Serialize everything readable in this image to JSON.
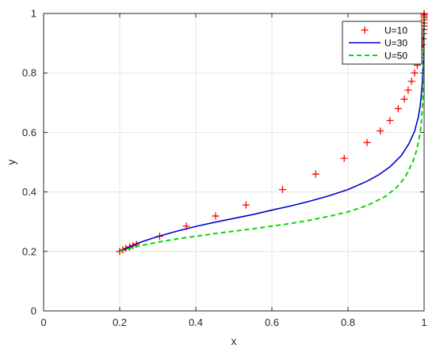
{
  "chart_data": {
    "type": "line",
    "title": "",
    "xlabel": "x",
    "ylabel": "y",
    "xlim": [
      0,
      1
    ],
    "ylim": [
      0,
      1
    ],
    "xticks": [
      0,
      0.2,
      0.4,
      0.6,
      0.8,
      1
    ],
    "yticks": [
      0,
      0.2,
      0.4,
      0.6,
      0.8,
      1
    ],
    "xtick_labels": [
      "0",
      "0.2",
      "0.4",
      "0.6",
      "0.8",
      "1"
    ],
    "ytick_labels": [
      "0",
      "0.2",
      "0.4",
      "0.6",
      "0.8",
      "1"
    ],
    "grid": true,
    "legend_position": "top-right",
    "series": [
      {
        "name": "U=10",
        "style": "markers-plus",
        "color": "#ff0000",
        "x": [
          0.2,
          0.208,
          0.216,
          0.226,
          0.235,
          0.244,
          0.305,
          0.375,
          0.452,
          0.532,
          0.628,
          0.715,
          0.79,
          0.85,
          0.885,
          0.91,
          0.932,
          0.948,
          0.958,
          0.967,
          0.975,
          0.982,
          0.988,
          0.992,
          0.995,
          0.997,
          0.998,
          0.999,
          1.0,
          1.0,
          1.0,
          1.0,
          1.0,
          1.0,
          1.0
        ],
        "y": [
          0.2,
          0.205,
          0.21,
          0.215,
          0.22,
          0.224,
          0.251,
          0.285,
          0.319,
          0.356,
          0.408,
          0.46,
          0.513,
          0.566,
          0.605,
          0.64,
          0.68,
          0.712,
          0.742,
          0.772,
          0.8,
          0.826,
          0.852,
          0.875,
          0.895,
          0.915,
          0.932,
          0.946,
          0.958,
          0.968,
          0.978,
          0.985,
          0.991,
          0.996,
          1.0
        ]
      },
      {
        "name": "U=30",
        "style": "solid",
        "color": "#0000cc",
        "x": [
          0.2,
          0.25,
          0.3,
          0.35,
          0.4,
          0.45,
          0.5,
          0.55,
          0.6,
          0.65,
          0.7,
          0.75,
          0.8,
          0.85,
          0.88,
          0.91,
          0.94,
          0.96,
          0.975,
          0.985,
          0.99,
          0.995,
          0.998,
          1.0
        ],
        "y": [
          0.2,
          0.229,
          0.25,
          0.268,
          0.284,
          0.298,
          0.311,
          0.324,
          0.339,
          0.353,
          0.369,
          0.387,
          0.408,
          0.436,
          0.457,
          0.484,
          0.522,
          0.562,
          0.604,
          0.652,
          0.692,
          0.76,
          0.84,
          1.0
        ]
      },
      {
        "name": "U=50",
        "style": "dashed",
        "color": "#00dd00",
        "x": [
          0.2,
          0.25,
          0.3,
          0.35,
          0.4,
          0.45,
          0.5,
          0.55,
          0.6,
          0.65,
          0.7,
          0.75,
          0.8,
          0.85,
          0.9,
          0.93,
          0.95,
          0.97,
          0.98,
          0.99,
          0.995,
          0.998,
          1.0
        ],
        "y": [
          0.2,
          0.218,
          0.231,
          0.242,
          0.251,
          0.26,
          0.268,
          0.276,
          0.285,
          0.294,
          0.305,
          0.318,
          0.333,
          0.354,
          0.386,
          0.418,
          0.449,
          0.5,
          0.538,
          0.6,
          0.672,
          0.76,
          1.0
        ]
      }
    ]
  }
}
